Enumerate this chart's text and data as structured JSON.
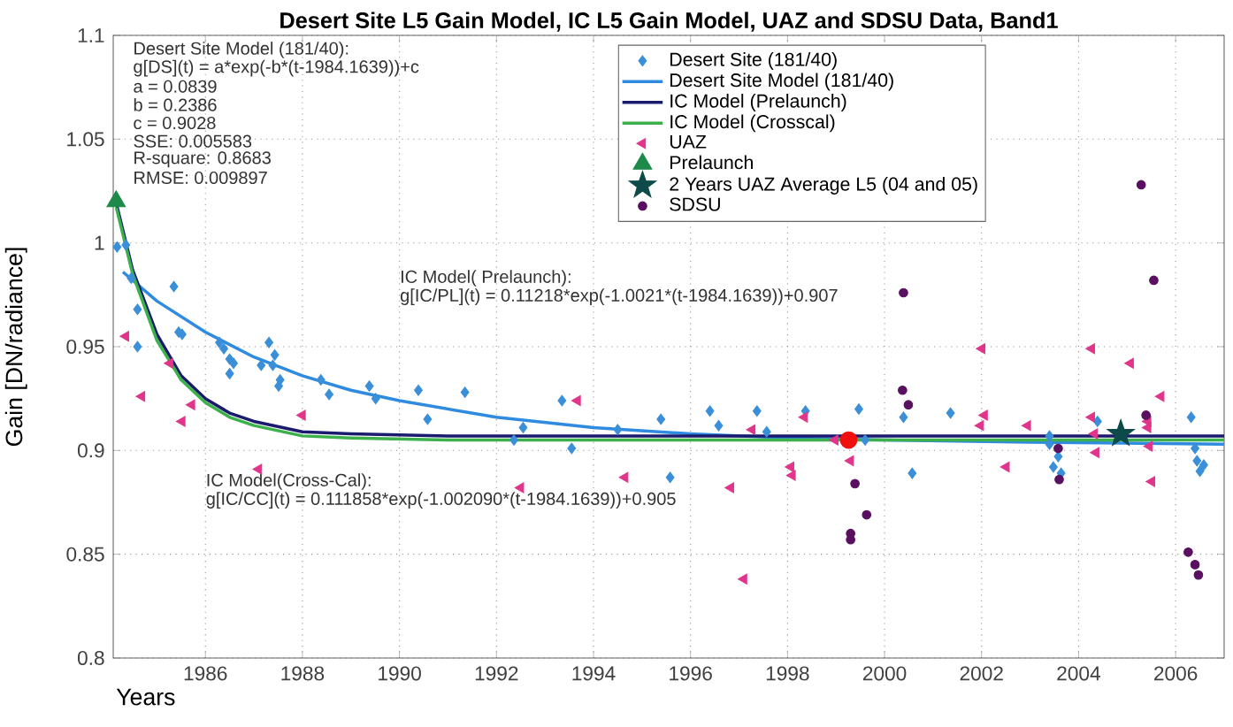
{
  "chart_data": {
    "type": "scatter",
    "title": "Desert Site L5 Gain Model, IC L5 Gain Model, UAZ and SDSU Data, Band1",
    "xlabel": "Years",
    "ylabel": "Gain [DN/radiance]",
    "xlim": [
      1984.1,
      2007
    ],
    "xticks": [
      1986,
      1988,
      1990,
      1992,
      1994,
      1996,
      1998,
      2000,
      2002,
      2004,
      2006
    ],
    "ylim": [
      0.8,
      1.1
    ],
    "yticks": [
      0.8,
      0.85,
      0.9,
      0.95,
      1,
      1.05,
      1.1
    ],
    "grid": true,
    "legend": "top",
    "annotations": [
      "Desert Site Model (181/40):",
      "g[DS](t) = a*exp(-b*(t-1984.1639))+c",
      "a =     0.0839",
      "b =     0.2386",
      "c =     0.9028",
      "SSE: 0.005583",
      "R-square: 0.8683",
      "RMSE: 0.009897",
      "IC Model( Prelaunch):",
      "g[IC/PL](t) = 0.11218*exp(-1.0021*(t-1984.1639))+0.907",
      "IC Model(Cross-Cal):",
      "g[IC/CC](t) = 0.111858*exp(-1.002090*(t-1984.1639))+0.905"
    ],
    "series": [
      {
        "name": "Desert Site (181/40)",
        "type": "scatter",
        "marker": "diamond",
        "color": "#3a8fd8",
        "x": [
          1984.18,
          1984.36,
          1984.47,
          1984.6,
          1984.6,
          1985.35,
          1985.45,
          1985.52,
          1986.29,
          1986.38,
          1986.5,
          1986.58,
          1986.5,
          1987.15,
          1987.31,
          1987.43,
          1987.39,
          1987.54,
          1987.51,
          1988.38,
          1988.55,
          1989.38,
          1989.51,
          1990.39,
          1990.58,
          1991.35,
          1992.36,
          1992.55,
          1993.35,
          1993.55,
          1994.5,
          1995.39,
          1995.58,
          1996.4,
          1996.58,
          1997.37,
          1997.57,
          1998.37,
          1999.47,
          1999.6,
          2000.39,
          2000.57,
          2001.36,
          2003.4,
          2003.4,
          2003.58,
          2003.48,
          2003.64,
          2004.39,
          2006.32,
          2006.4,
          2006.44,
          2006.5,
          2006.58
        ],
        "values": [
          0.998,
          0.999,
          0.983,
          0.968,
          0.95,
          0.979,
          0.957,
          0.956,
          0.952,
          0.949,
          0.944,
          0.942,
          0.937,
          0.941,
          0.952,
          0.946,
          0.941,
          0.934,
          0.931,
          0.934,
          0.927,
          0.931,
          0.925,
          0.929,
          0.915,
          0.928,
          0.905,
          0.911,
          0.924,
          0.901,
          0.91,
          0.915,
          0.887,
          0.919,
          0.912,
          0.919,
          0.909,
          0.919,
          0.92,
          0.905,
          0.916,
          0.889,
          0.918,
          0.907,
          0.903,
          0.897,
          0.892,
          0.889,
          0.914,
          0.916,
          0.901,
          0.895,
          0.89,
          0.893
        ]
      },
      {
        "name": "Desert Site Model (181/40)",
        "type": "line",
        "marker": "none",
        "color": "#2f8be0",
        "x": [
          1984.3,
          1985,
          1986,
          1987,
          1988,
          1989,
          1990,
          1992,
          1994,
          1996,
          1998,
          2000,
          2003,
          2007
        ],
        "values": [
          0.986,
          0.972,
          0.957,
          0.945,
          0.936,
          0.929,
          0.924,
          0.916,
          0.911,
          0.908,
          0.906,
          0.905,
          0.904,
          0.903
        ]
      },
      {
        "name": "IC Model (Prelaunch)",
        "type": "line",
        "marker": "none",
        "color": "#1a1a6e",
        "x": [
          1984.1639,
          1984.5,
          1985,
          1985.5,
          1986,
          1986.5,
          1987,
          1988,
          1989,
          1991,
          2007
        ],
        "values": [
          1.019,
          0.987,
          0.956,
          0.936,
          0.925,
          0.918,
          0.914,
          0.909,
          0.908,
          0.907,
          0.907
        ]
      },
      {
        "name": "IC Model (Crosscal)",
        "type": "line",
        "marker": "none",
        "color": "#3cb04a",
        "x": [
          1984.1639,
          1984.5,
          1985,
          1985.5,
          1986,
          1986.5,
          1987,
          1988,
          1989,
          1991,
          2007
        ],
        "values": [
          1.017,
          0.985,
          0.953,
          0.934,
          0.923,
          0.916,
          0.912,
          0.907,
          0.906,
          0.905,
          0.905
        ]
      },
      {
        "name": "UAZ",
        "type": "scatter",
        "marker": "triangle",
        "color": "#e0358a",
        "x": [
          1984.36,
          1984.69,
          1985.27,
          1985.52,
          1985.72,
          1987.1,
          1988.0,
          1992.5,
          1993.67,
          1994.65,
          1996.83,
          1997.1,
          1997.27,
          1998.07,
          1998.1,
          1998.35,
          1999.3,
          1998.98,
          2001.98,
          2002.01,
          2002.06,
          2002.51,
          2002.95,
          2004.27,
          2004.27,
          2004.33,
          2004.36,
          2005.07,
          2005.43,
          2005.43,
          2005.46,
          2005.51,
          2005.7
        ],
        "values": [
          0.955,
          0.926,
          0.942,
          0.914,
          0.922,
          0.891,
          0.917,
          0.882,
          0.924,
          0.887,
          0.882,
          0.838,
          0.91,
          0.892,
          0.888,
          0.916,
          0.895,
          0.905,
          0.912,
          0.949,
          0.917,
          0.892,
          0.912,
          0.949,
          0.916,
          0.908,
          0.899,
          0.942,
          0.914,
          0.911,
          0.902,
          0.885,
          0.926
        ]
      },
      {
        "name": "Prelaunch",
        "type": "scatter",
        "marker": "triangle",
        "color": "#1e8a4a",
        "x": [
          1984.16
        ],
        "values": [
          1.02
        ]
      },
      {
        "name": "2 Years UAZ Average L5 (04 and 05)",
        "type": "scatter",
        "marker": "star",
        "color": "#0e4a4a",
        "x": [
          2004.87
        ],
        "values": [
          0.908
        ]
      },
      {
        "name": "SDSU",
        "type": "scatter",
        "marker": "circle",
        "color": "#5a1060",
        "x": [
          2005.29,
          2005.55,
          2000.39,
          2000.37,
          2000.49,
          1999.39,
          1999.63,
          1999.3,
          1999.3,
          2003.58,
          2003.6,
          2005.39,
          2006.26,
          2006.4,
          2006.47
        ],
        "values": [
          1.028,
          0.982,
          0.976,
          0.929,
          0.922,
          0.884,
          0.869,
          0.86,
          0.857,
          0.901,
          0.886,
          0.917,
          0.851,
          0.845,
          0.84
        ]
      },
      {
        "type": "scatter",
        "marker": "circle",
        "color": "#f01010",
        "x": [
          1999.26
        ],
        "values": [
          0.905
        ]
      }
    ]
  }
}
